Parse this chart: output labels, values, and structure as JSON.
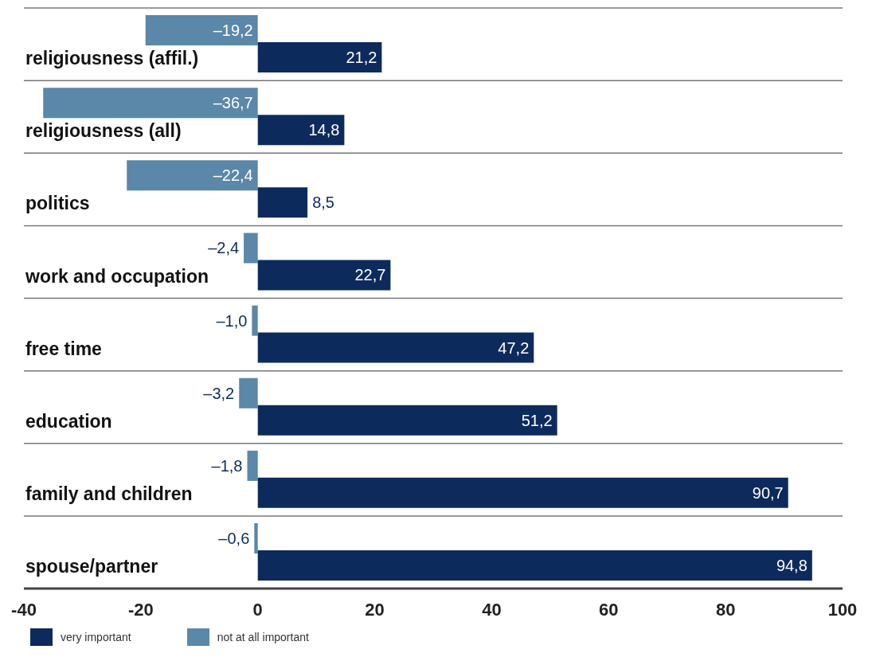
{
  "chart_data": {
    "type": "bar",
    "orientation": "horizontal",
    "categories": [
      "religiousness (affil.)",
      "religiousness (all)",
      "politics",
      "work and occupation",
      "free time",
      "education",
      "family and children",
      "spouse/partner"
    ],
    "series": [
      {
        "name": "not at all important",
        "color": "#5b87a8",
        "values": [
          -19.2,
          -36.7,
          -22.4,
          -2.4,
          -1.0,
          -3.2,
          -1.8,
          -0.6
        ],
        "value_labels": [
          "–19,2",
          "–36,7",
          "–22,4",
          "–2,4",
          "–1,0",
          "–3,2",
          "–1,8",
          "–0,6"
        ]
      },
      {
        "name": "very important",
        "color": "#0d2a5c",
        "values": [
          21.2,
          14.8,
          8.5,
          22.7,
          47.2,
          51.2,
          90.7,
          94.8
        ],
        "value_labels": [
          "21,2",
          "14,8",
          "8,5",
          "22,7",
          "47,2",
          "51,2",
          "90,7",
          "94,8"
        ]
      }
    ],
    "xlim": [
      -40,
      100
    ],
    "xticks": [
      -40,
      -20,
      0,
      20,
      40,
      60,
      80,
      100
    ],
    "grid": "y",
    "legend": "bottom left"
  }
}
